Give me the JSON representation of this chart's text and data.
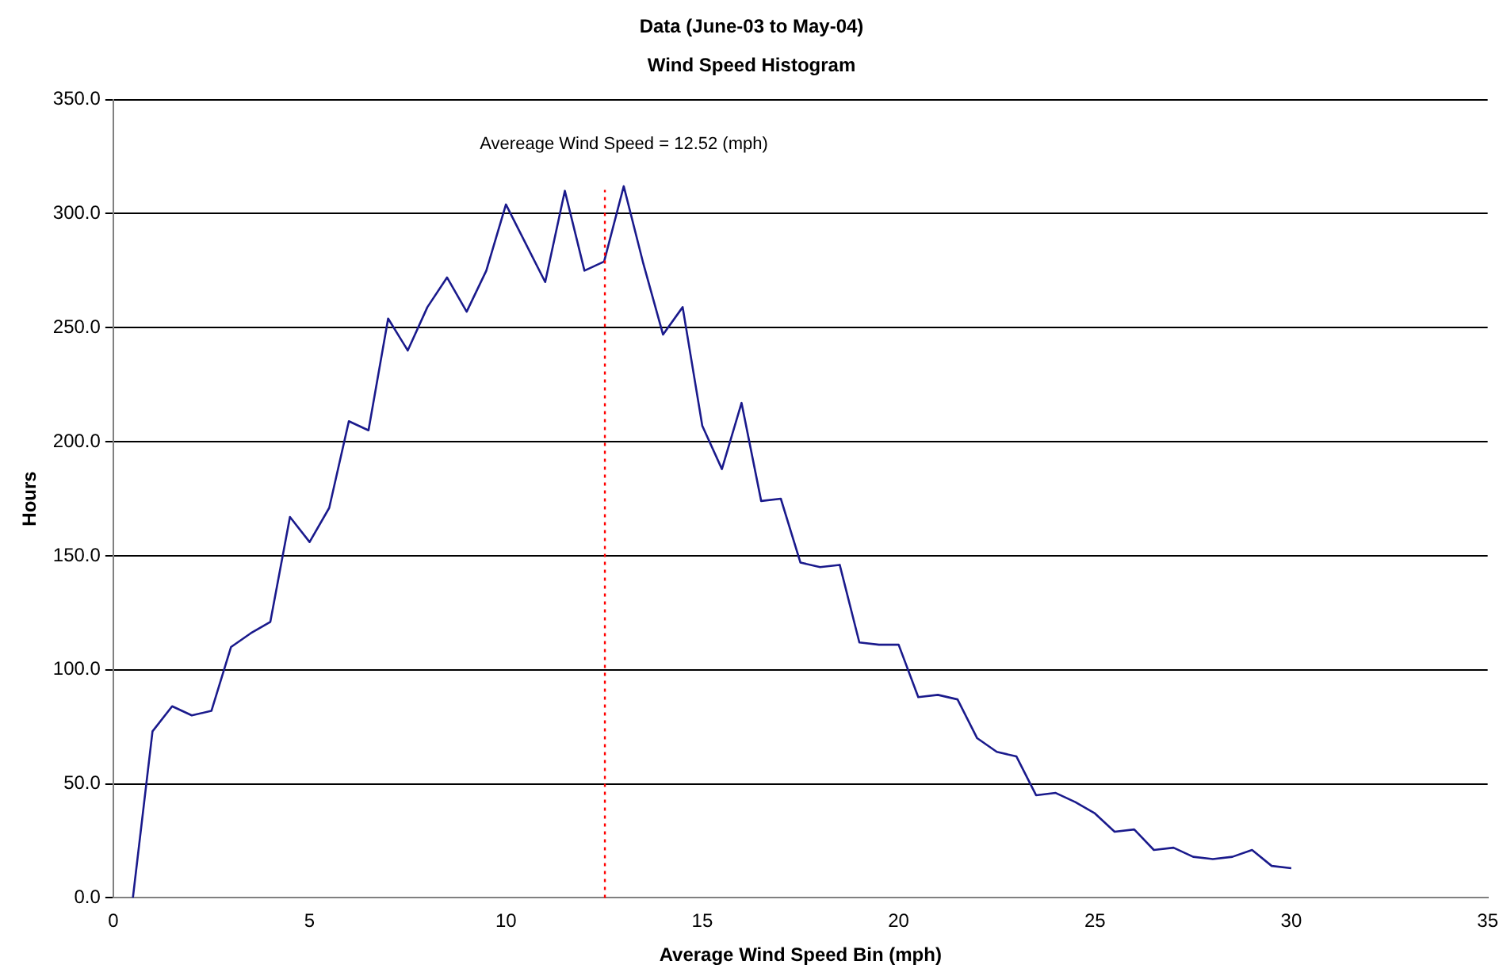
{
  "chart_data": {
    "type": "line",
    "title": "Data (June-03 to May-04)",
    "subtitle": "Wind Speed Histogram",
    "xlabel": "Average Wind Speed Bin (mph)",
    "ylabel": "Hours",
    "x": [
      0.5,
      1,
      1.5,
      2,
      2.5,
      3,
      3.5,
      4,
      4.5,
      5,
      5.5,
      6,
      6.5,
      7,
      7.5,
      8,
      8.5,
      9,
      9.5,
      10,
      10.5,
      11,
      11.5,
      12,
      12.5,
      13,
      13.5,
      14,
      14.5,
      15,
      15.5,
      16,
      16.5,
      17,
      17.5,
      18,
      18.5,
      19,
      19.5,
      20,
      20.5,
      21,
      21.5,
      22,
      22.5,
      23,
      23.5,
      24,
      24.5,
      25,
      25.5,
      26,
      26.5,
      27,
      27.5,
      28,
      28.5,
      29,
      29.5,
      30
    ],
    "series": [
      {
        "color": "#1a1a8c",
        "values": [
          0,
          73,
          84,
          80,
          82,
          110,
          116,
          121,
          167,
          156,
          171,
          209,
          205,
          254,
          240,
          259,
          272,
          257,
          275,
          304,
          287,
          270,
          310,
          275,
          279,
          312,
          278,
          247,
          259,
          207,
          188,
          217,
          174,
          175,
          147,
          145,
          146,
          112,
          111,
          111,
          88,
          89,
          87,
          70,
          64,
          62,
          45,
          46,
          42,
          37,
          29,
          30,
          21,
          22,
          18,
          17,
          18,
          21,
          14,
          13
        ]
      }
    ],
    "xlim": [
      0,
      35
    ],
    "xticks": [
      0,
      5,
      10,
      15,
      20,
      25,
      30,
      35
    ],
    "ylim": [
      0,
      350
    ],
    "yticks": [
      {
        "value": 0,
        "label": "0.0"
      },
      {
        "value": 50,
        "label": "50.0"
      },
      {
        "value": 100,
        "label": "100.0"
      },
      {
        "value": 150,
        "label": "150.0"
      },
      {
        "value": 200,
        "label": "200.0"
      },
      {
        "value": 250,
        "label": "250.0"
      },
      {
        "value": 300,
        "label": "300.0"
      },
      {
        "value": 350,
        "label": "350.0"
      }
    ],
    "ref_lines": [
      {
        "axis": "x",
        "value": 12.52,
        "label": "Avereage Wind Speed = 12.52 (mph)",
        "color": "#ff0000",
        "line_style": "dotted"
      }
    ],
    "grid": "y",
    "legend": false,
    "marker": "none",
    "line_style": "solid"
  }
}
